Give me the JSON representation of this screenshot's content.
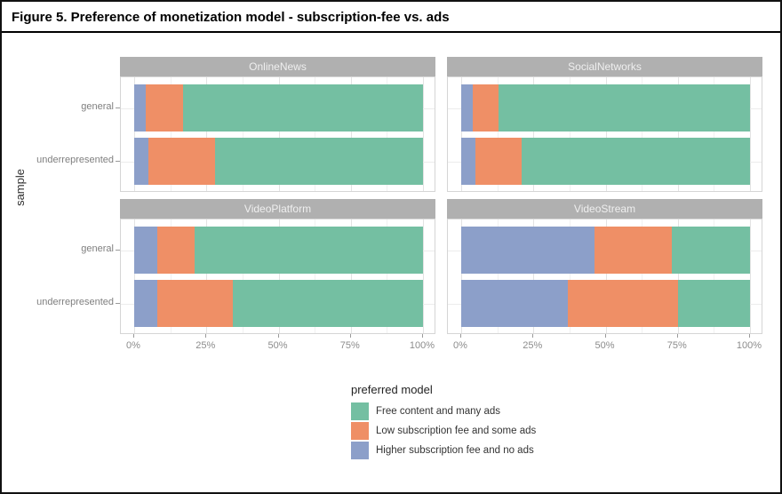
{
  "figure": {
    "title": "Figure 5. Preference of monetization model - subscription-fee vs. ads"
  },
  "axes": {
    "x_tick_labels": [
      "0%",
      "25%",
      "50%",
      "75%",
      "100%"
    ],
    "y_axis_title": "sample",
    "y_categories": [
      "general",
      "underrepresented"
    ]
  },
  "legend": {
    "title": "preferred model",
    "items": [
      {
        "key": "free_content_many_ads",
        "label": "Free content and many ads",
        "color": "#74bfa2"
      },
      {
        "key": "low_subscription_some_ads",
        "label": "Low subscription fee and some ads",
        "color": "#ef8f66"
      },
      {
        "key": "higher_subscription_no_ads",
        "label": "Higher subscription fee and no ads",
        "color": "#8c9fc9"
      }
    ]
  },
  "chart_data": {
    "type": "bar",
    "subtype": "horizontal_stacked_percentage",
    "title": "Figure 5. Preference of monetization model - subscription-fee vs. ads",
    "xlabel": "",
    "ylabel": "sample",
    "unit": "%",
    "x_range": [
      0,
      100
    ],
    "x_major_ticks": [
      0,
      25,
      50,
      75,
      100
    ],
    "x_minor_ticks": [
      12.5,
      37.5,
      62.5,
      87.5
    ],
    "grid": true,
    "legend_position": "bottom",
    "legend_title": "preferred model",
    "stack_order": [
      "higher_subscription_no_ads",
      "low_subscription_some_ads",
      "free_content_many_ads"
    ],
    "series_colors": {
      "free_content_many_ads": "#74bfa2",
      "low_subscription_some_ads": "#ef8f66",
      "higher_subscription_no_ads": "#8c9fc9"
    },
    "series_labels": {
      "free_content_many_ads": "Free content and many ads",
      "low_subscription_some_ads": "Low subscription fee and some ads",
      "higher_subscription_no_ads": "Higher subscription fee and no ads"
    },
    "facets": [
      {
        "title": "OnlineNews",
        "rows": [
          {
            "category": "general",
            "values": {
              "higher_subscription_no_ads": 4,
              "low_subscription_some_ads": 13,
              "free_content_many_ads": 83
            }
          },
          {
            "category": "underrepresented",
            "values": {
              "higher_subscription_no_ads": 5,
              "low_subscription_some_ads": 23,
              "free_content_many_ads": 72
            }
          }
        ]
      },
      {
        "title": "SocialNetworks",
        "rows": [
          {
            "category": "general",
            "values": {
              "higher_subscription_no_ads": 4,
              "low_subscription_some_ads": 9,
              "free_content_many_ads": 87
            }
          },
          {
            "category": "underrepresented",
            "values": {
              "higher_subscription_no_ads": 5,
              "low_subscription_some_ads": 16,
              "free_content_many_ads": 79
            }
          }
        ]
      },
      {
        "title": "VideoPlatform",
        "rows": [
          {
            "category": "general",
            "values": {
              "higher_subscription_no_ads": 8,
              "low_subscription_some_ads": 13,
              "free_content_many_ads": 79
            }
          },
          {
            "category": "underrepresented",
            "values": {
              "higher_subscription_no_ads": 8,
              "low_subscription_some_ads": 26,
              "free_content_many_ads": 66
            }
          }
        ]
      },
      {
        "title": "VideoStream",
        "rows": [
          {
            "category": "general",
            "values": {
              "higher_subscription_no_ads": 46,
              "low_subscription_some_ads": 27,
              "free_content_many_ads": 27
            }
          },
          {
            "category": "underrepresented",
            "values": {
              "higher_subscription_no_ads": 37,
              "low_subscription_some_ads": 38,
              "free_content_many_ads": 25
            }
          }
        ]
      }
    ],
    "styles": {
      "strip_background": "#b0b0b0",
      "strip_text": "#efefef",
      "panel_border": "#d5d5d5",
      "grid_major": "#e3e3e3",
      "grid_minor": "#f1f1f1",
      "axis_text": "#8c8c8c",
      "figure_border": "#111111"
    }
  }
}
